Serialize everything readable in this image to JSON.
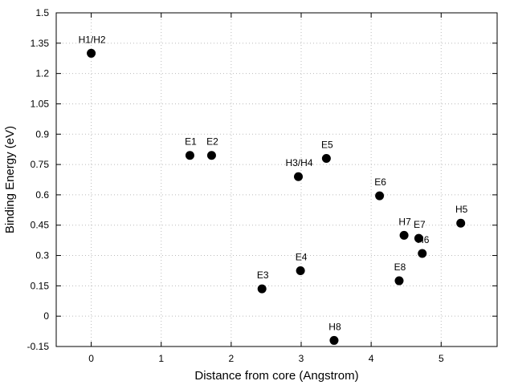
{
  "chart_data": {
    "type": "scatter",
    "xlabel": "Distance from core (Angstrom)",
    "ylabel": "Binding Energy (eV)",
    "xlim": [
      -0.5,
      5.8
    ],
    "ylim": [
      -0.15,
      1.5
    ],
    "xticks": [
      0,
      1,
      2,
      3,
      4,
      5
    ],
    "xtick_labels": [
      "0",
      "1",
      "2",
      "3",
      "4",
      "5"
    ],
    "yticks": [
      -0.15,
      0,
      0.15,
      0.3,
      0.45,
      0.6,
      0.75,
      0.9,
      1.05,
      1.2,
      1.35,
      1.5
    ],
    "ytick_labels": [
      "-0.15",
      "0",
      "0.15",
      "0.3",
      "0.45",
      "0.6",
      "0.75",
      "0.9",
      "1.05",
      "1.2",
      "1.35",
      "1.5"
    ],
    "grid": true,
    "legend": false,
    "marker_color": "#000000",
    "points": [
      {
        "label": "H1/H2",
        "x": 0.0,
        "y": 1.3
      },
      {
        "label": "E1",
        "x": 1.41,
        "y": 0.795
      },
      {
        "label": "E2",
        "x": 1.72,
        "y": 0.795
      },
      {
        "label": "H3/H4",
        "x": 2.96,
        "y": 0.69
      },
      {
        "label": "E5",
        "x": 3.36,
        "y": 0.78
      },
      {
        "label": "E6",
        "x": 4.12,
        "y": 0.595
      },
      {
        "label": "H5",
        "x": 5.28,
        "y": 0.46
      },
      {
        "label": "H7",
        "x": 4.47,
        "y": 0.4
      },
      {
        "label": "E7",
        "x": 4.68,
        "y": 0.385
      },
      {
        "label": "H6",
        "x": 4.73,
        "y": 0.31
      },
      {
        "label": "E8",
        "x": 4.4,
        "y": 0.175
      },
      {
        "label": "E4",
        "x": 2.99,
        "y": 0.225
      },
      {
        "label": "E3",
        "x": 2.44,
        "y": 0.135
      },
      {
        "label": "H8",
        "x": 3.47,
        "y": -0.12
      }
    ]
  }
}
